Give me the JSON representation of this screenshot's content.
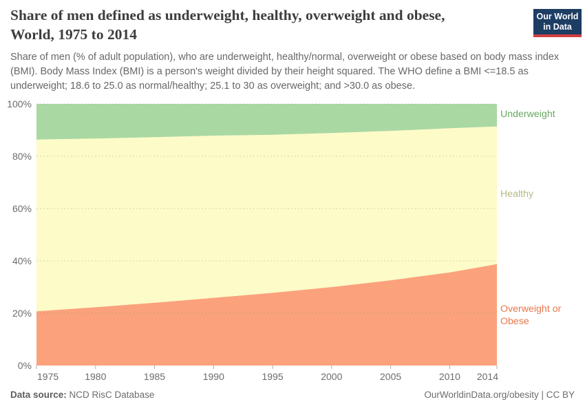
{
  "header": {
    "title_line1": "Share of men defined as underweight, healthy, overweight and obese,",
    "title_line2": "World, 1975 to 2014",
    "subtitle": "Share of men (% of adult population), who are underweight, healthy/normal, overweight or obese based on body mass index (BMI). Body Mass Index (BMI) is a person's weight divided by their height squared. The WHO define a BMI <=18.5 as underweight; 18.6 to 25.0 as normal/healthy; 25.1 to 30 as overweight; and >30.0 as obese."
  },
  "logo": {
    "line1": "Our World",
    "line2": "in Data",
    "bg_color": "#1d3d63",
    "accent_color": "#d13d40"
  },
  "chart_data": {
    "type": "area",
    "stacked": true,
    "title": "Share of men defined as underweight, healthy, overweight and obese, World, 1975 to 2014",
    "unit": "%",
    "x": [
      1975,
      1980,
      1985,
      1990,
      1995,
      2000,
      2005,
      2010,
      2014
    ],
    "series": [
      {
        "name": "Overweight or Obese",
        "color": "#fba27c",
        "label_color": "#e8764b",
        "values": [
          20.7,
          22.3,
          24.0,
          25.9,
          27.8,
          30.0,
          32.6,
          35.6,
          38.8
        ]
      },
      {
        "name": "Healthy",
        "color": "#fdfbc8",
        "label_color": "#b5b983",
        "values": [
          65.7,
          64.5,
          63.3,
          62.0,
          60.4,
          58.9,
          57.1,
          55.1,
          52.6
        ]
      },
      {
        "name": "Underweight",
        "color": "#aad8a2",
        "label_color": "#69a862",
        "values": [
          13.6,
          13.2,
          12.7,
          12.1,
          11.8,
          11.1,
          10.3,
          9.3,
          8.6
        ]
      }
    ],
    "ylim": [
      0,
      100
    ],
    "xlabel": "",
    "ylabel": "",
    "grid": "dashed horizontal at every 20%",
    "legend_position": "right edge labels",
    "y_ticks": [
      "0%",
      "20%",
      "40%",
      "60%",
      "80%",
      "100%"
    ],
    "x_ticks": [
      "1975",
      "1980",
      "1985",
      "1990",
      "1995",
      "2000",
      "2005",
      "2010",
      "2014"
    ]
  },
  "footer": {
    "source_label": "Data source:",
    "source_value": "NCD RisC Database",
    "credit": "OurWorldinData.org/obesity | CC BY"
  }
}
